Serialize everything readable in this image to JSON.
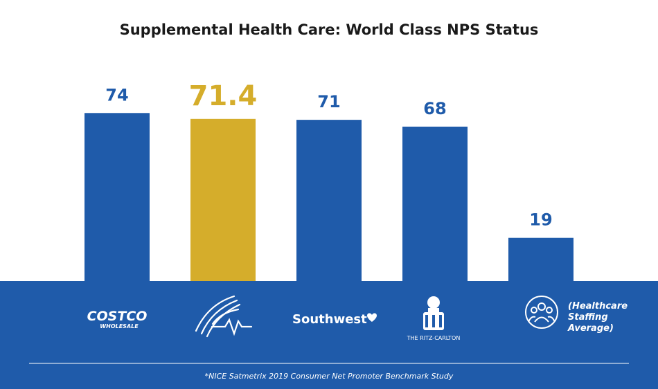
{
  "chart_data": {
    "type": "bar",
    "title": "Supplemental Health Care: World Class NPS Status",
    "categories": [
      "Costco Wholesale",
      "Supplemental Health Care",
      "Southwest",
      "The Ritz-Carlton",
      "(Healthcare Staffing Average)"
    ],
    "values": [
      74,
      71.4,
      71,
      68,
      19
    ],
    "value_labels": [
      "74",
      "71.4",
      "71",
      "68",
      "19"
    ],
    "highlight_index": 1,
    "ylim": [
      0,
      100
    ],
    "grid": false,
    "colors": {
      "bar": "#1f5baa",
      "highlight": "#d5ad2b",
      "band": "#1f5baa"
    }
  },
  "logos": {
    "costco_line1": "COSTCO",
    "costco_line2": "WHOLESALE",
    "southwest": "Southwest",
    "ritz": "THE RITZ-CARLTON",
    "healthcare_line1": "(Healthcare",
    "healthcare_line2": "Staffing",
    "healthcare_line3": "Average)"
  },
  "footnote": "*NICE Satmetrix 2019 Consumer Net Promoter Benchmark Study"
}
